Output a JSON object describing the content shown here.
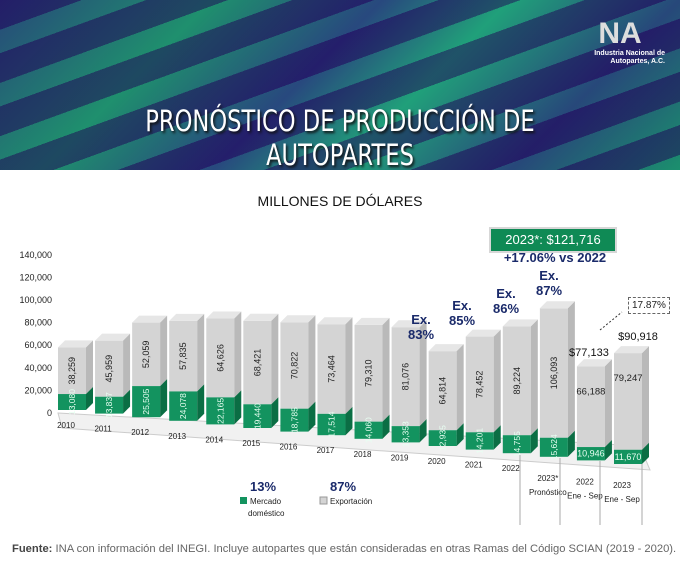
{
  "header": {
    "title": "PRONÓSTICO DE PRODUCCIÓN DE AUTOPARTES",
    "logo_text": "Industria Nacional de Autopartes, A.C."
  },
  "unit_label": "MILLONES DE DÓLARES",
  "callouts": {
    "forecast_total": "2023*: $121,716",
    "vs_prev": "+17.06% vs 2022",
    "growth_ytd": "17.87%",
    "ex_2020": "Ex. 83%",
    "ex_2021": "Ex. 85%",
    "ex_2022": "Ex. 86%",
    "ex_2023": "Ex. 87%",
    "total_2022_ytd": "$77,133",
    "total_2023_ytd": "$90,918"
  },
  "legend": {
    "domestic_share": "13%",
    "export_share": "87%",
    "domestic": "Mercado doméstico",
    "export": "Exportación"
  },
  "footer": {
    "label": "Fuente:",
    "text": " INA con información del INEGI. Incluye autopartes que están consideradas en otras Ramas del Código SCIAN (2019 - 2020)."
  },
  "chart_data": {
    "type": "bar",
    "stacked": true,
    "title": "",
    "ylabel": "MILLONES DE DÓLARES",
    "ylim": [
      0,
      140000
    ],
    "yticks": [
      "0",
      "20,000",
      "40,000",
      "60,000",
      "80,000",
      "100,000",
      "120,000",
      "140,000"
    ],
    "categories": [
      "2010",
      "2011",
      "2012",
      "2013",
      "2014",
      "2015",
      "2016",
      "2017",
      "2018",
      "2019",
      "2020",
      "2021",
      "2022",
      "2023* Pronóstico",
      "2022 Ene - Sep",
      "2023 Ene - Sep"
    ],
    "series": [
      {
        "name": "Mercado doméstico",
        "color": "#13935f",
        "values": [
          13080,
          13837,
          25505,
          24078,
          22165,
          19440,
          18785,
          17514,
          14060,
          13353,
          12935,
          14201,
          14755,
          15624,
          10946,
          11670
        ]
      },
      {
        "name": "Exportación",
        "color": "#d4d4d4",
        "values": [
          38259,
          45959,
          52059,
          57835,
          64626,
          68421,
          70822,
          73464,
          79310,
          81076,
          64814,
          78452,
          89224,
          106093,
          66188,
          79247
        ]
      }
    ]
  }
}
